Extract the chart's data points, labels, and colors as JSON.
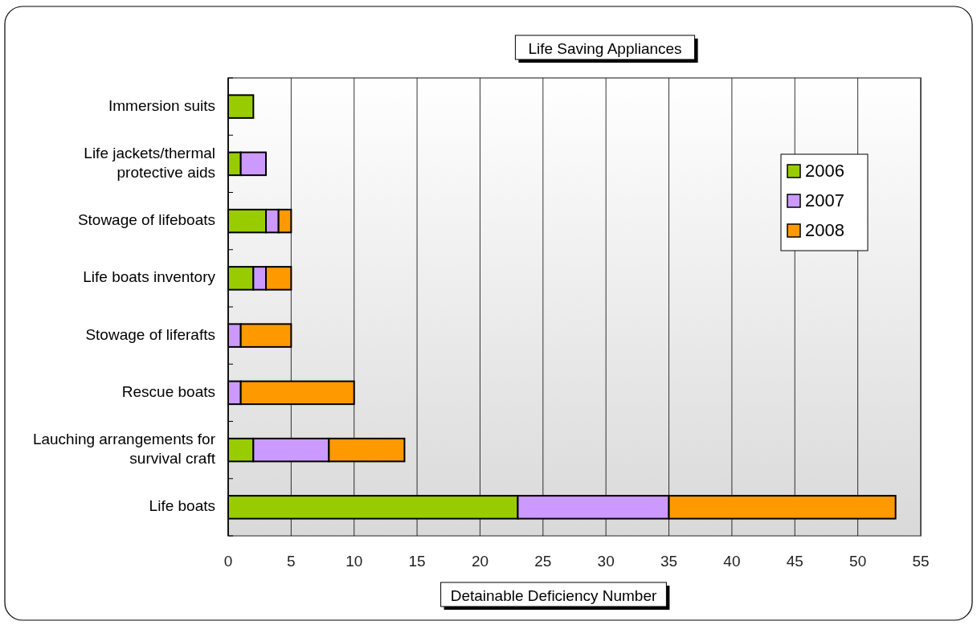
{
  "chart_data": {
    "type": "bar",
    "orientation": "horizontal",
    "stacked": true,
    "title": "Life Saving Appliances",
    "xlabel": "Detainable Deficiency Number",
    "categories": [
      "Immersion suits",
      "Life jackets/thermal protective aids",
      "Stowage of lifeboats",
      "Life boats inventory",
      "Stowage of liferafts",
      "Rescue boats",
      "Lauching arrangements for survival craft",
      "Life boats"
    ],
    "series": [
      {
        "name": "2006",
        "color": "#99cc00",
        "values": [
          2,
          1,
          3,
          2,
          0,
          0,
          2,
          23
        ]
      },
      {
        "name": "2007",
        "color": "#cc99ff",
        "values": [
          0,
          2,
          1,
          1,
          1,
          1,
          6,
          12
        ]
      },
      {
        "name": "2008",
        "color": "#ff9900",
        "values": [
          0,
          0,
          1,
          2,
          4,
          9,
          6,
          18
        ]
      }
    ],
    "xlim": [
      0,
      55
    ],
    "xticks": [
      0,
      5,
      10,
      15,
      20,
      25,
      30,
      35,
      40,
      45,
      50,
      55
    ],
    "grid": "x",
    "legend": "right"
  }
}
